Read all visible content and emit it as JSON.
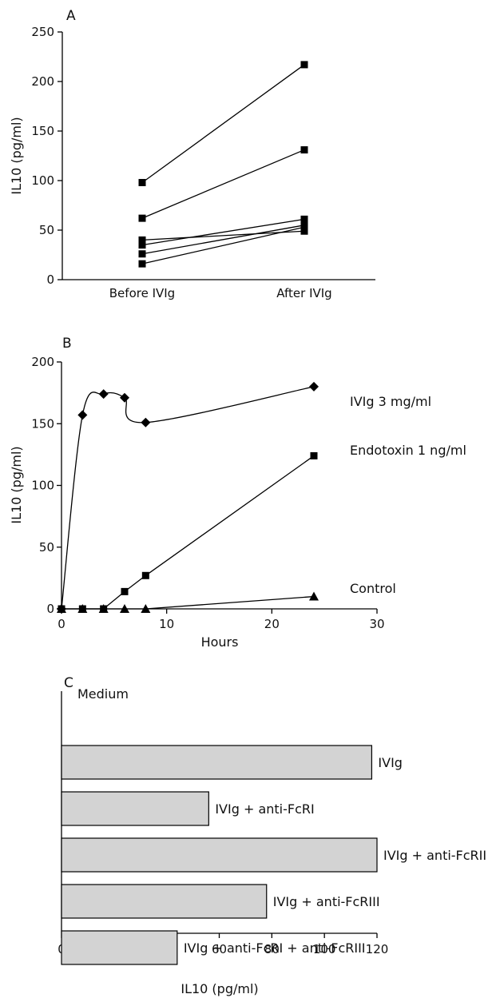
{
  "chart_data": [
    {
      "panel": "A",
      "type": "line",
      "ylabel": "IL10 (pg/ml)",
      "xlabel": "",
      "categories": [
        "Before IVIg",
        "After IVIg"
      ],
      "ylim": [
        0,
        250
      ],
      "yticks": [
        0,
        50,
        100,
        150,
        200,
        250
      ],
      "series": [
        {
          "values": [
            98,
            217
          ]
        },
        {
          "values": [
            62,
            131
          ]
        },
        {
          "values": [
            40,
            49
          ]
        },
        {
          "values": [
            35,
            61
          ]
        },
        {
          "values": [
            26,
            55
          ]
        },
        {
          "values": [
            16,
            53
          ]
        }
      ]
    },
    {
      "panel": "B",
      "type": "line",
      "ylabel": "IL10 (pg/ml)",
      "xlabel": "Hours",
      "xlim": [
        0,
        30
      ],
      "ylim": [
        0,
        200
      ],
      "xticks": [
        0,
        10,
        20,
        30
      ],
      "yticks": [
        0,
        50,
        100,
        150,
        200
      ],
      "series": [
        {
          "name": "IVIg 3 mg/ml",
          "marker": "diamond",
          "x": [
            0,
            2,
            4,
            6,
            8,
            24
          ],
          "y": [
            0,
            157,
            174,
            171,
            151,
            180
          ]
        },
        {
          "name": "Endotoxin 1 ng/ml",
          "marker": "square",
          "x": [
            0,
            2,
            4,
            6,
            8,
            24
          ],
          "y": [
            0,
            0,
            0,
            14,
            27,
            124
          ]
        },
        {
          "name": "Control",
          "marker": "triangle",
          "x": [
            0,
            2,
            4,
            6,
            8,
            24
          ],
          "y": [
            0,
            0,
            0,
            0,
            0,
            10
          ]
        }
      ]
    },
    {
      "panel": "C",
      "type": "bar",
      "orientation": "horizontal",
      "xlabel": "IL10 (pg/ml)",
      "xlim": [
        0,
        120
      ],
      "xticks": [
        0,
        20,
        40,
        60,
        80,
        100,
        120
      ],
      "categories": [
        "Medium",
        "IVIg",
        "IVIg + anti-FcRI",
        "IVIg + anti-FcRII",
        "IVIg + anti-FcRIII",
        "IVIg + anti-FcRI + anti-FcRIII"
      ],
      "values": [
        0,
        118,
        56,
        120,
        78,
        44
      ],
      "bar_color": "#d3d3d3"
    }
  ]
}
